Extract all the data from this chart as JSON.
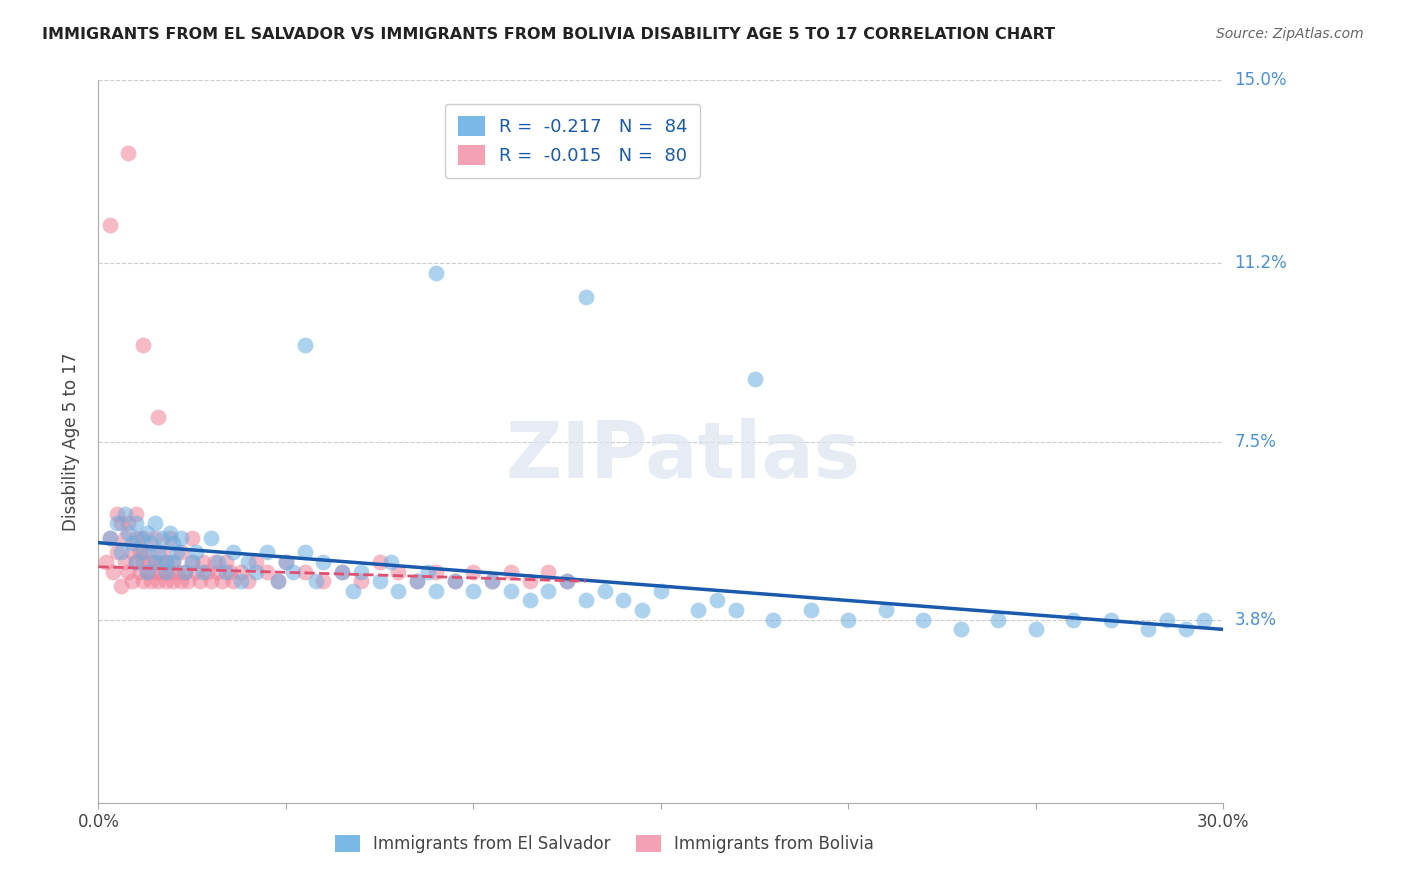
{
  "title": "IMMIGRANTS FROM EL SALVADOR VS IMMIGRANTS FROM BOLIVIA DISABILITY AGE 5 TO 17 CORRELATION CHART",
  "source": "Source: ZipAtlas.com",
  "ylabel": "Disability Age 5 to 17",
  "xlim": [
    0.0,
    0.3
  ],
  "ylim": [
    0.0,
    0.15
  ],
  "xticks": [
    0.0,
    0.05,
    0.1,
    0.15,
    0.2,
    0.25,
    0.3
  ],
  "ytick_positions": [
    0.038,
    0.075,
    0.112,
    0.15
  ],
  "ytick_labels": [
    "3.8%",
    "7.5%",
    "11.2%",
    "15.0%"
  ],
  "legend1_color": "#7ab8e8",
  "legend2_color": "#f4a0b5",
  "legend1_label": "Immigrants from El Salvador",
  "legend2_label": "Immigrants from Bolivia",
  "R1": -0.217,
  "N1": 84,
  "R2": -0.015,
  "N2": 80,
  "blue_color": "#6aaee0",
  "pink_color": "#f08098",
  "trend_blue": "#1a5aad",
  "trend_pink": "#e05070",
  "watermark": "ZIPatlas",
  "background": "#ffffff",
  "grid_color": "#cccccc",
  "el_salvador_x": [
    0.003,
    0.005,
    0.006,
    0.007,
    0.008,
    0.009,
    0.01,
    0.01,
    0.011,
    0.012,
    0.013,
    0.013,
    0.014,
    0.015,
    0.015,
    0.016,
    0.017,
    0.018,
    0.018,
    0.019,
    0.02,
    0.02,
    0.021,
    0.022,
    0.023,
    0.025,
    0.026,
    0.028,
    0.03,
    0.032,
    0.034,
    0.036,
    0.038,
    0.04,
    0.042,
    0.045,
    0.048,
    0.05,
    0.052,
    0.055,
    0.058,
    0.06,
    0.065,
    0.068,
    0.07,
    0.075,
    0.078,
    0.08,
    0.085,
    0.088,
    0.09,
    0.095,
    0.1,
    0.105,
    0.11,
    0.115,
    0.12,
    0.125,
    0.13,
    0.135,
    0.14,
    0.145,
    0.15,
    0.16,
    0.165,
    0.17,
    0.18,
    0.19,
    0.2,
    0.21,
    0.22,
    0.23,
    0.24,
    0.25,
    0.26,
    0.27,
    0.28,
    0.285,
    0.29,
    0.295,
    0.055,
    0.09,
    0.13,
    0.175
  ],
  "el_salvador_y": [
    0.055,
    0.058,
    0.052,
    0.06,
    0.056,
    0.054,
    0.058,
    0.05,
    0.055,
    0.052,
    0.056,
    0.048,
    0.054,
    0.05,
    0.058,
    0.052,
    0.055,
    0.05,
    0.048,
    0.056,
    0.054,
    0.05,
    0.052,
    0.055,
    0.048,
    0.05,
    0.052,
    0.048,
    0.055,
    0.05,
    0.048,
    0.052,
    0.046,
    0.05,
    0.048,
    0.052,
    0.046,
    0.05,
    0.048,
    0.052,
    0.046,
    0.05,
    0.048,
    0.044,
    0.048,
    0.046,
    0.05,
    0.044,
    0.046,
    0.048,
    0.044,
    0.046,
    0.044,
    0.046,
    0.044,
    0.042,
    0.044,
    0.046,
    0.042,
    0.044,
    0.042,
    0.04,
    0.044,
    0.04,
    0.042,
    0.04,
    0.038,
    0.04,
    0.038,
    0.04,
    0.038,
    0.036,
    0.038,
    0.036,
    0.038,
    0.038,
    0.036,
    0.038,
    0.036,
    0.038,
    0.095,
    0.11,
    0.105,
    0.088
  ],
  "bolivia_x": [
    0.002,
    0.003,
    0.004,
    0.005,
    0.005,
    0.006,
    0.006,
    0.007,
    0.007,
    0.008,
    0.008,
    0.009,
    0.009,
    0.01,
    0.01,
    0.01,
    0.011,
    0.011,
    0.012,
    0.012,
    0.012,
    0.013,
    0.013,
    0.014,
    0.014,
    0.015,
    0.015,
    0.016,
    0.016,
    0.017,
    0.017,
    0.018,
    0.018,
    0.019,
    0.019,
    0.02,
    0.02,
    0.021,
    0.022,
    0.022,
    0.023,
    0.024,
    0.025,
    0.025,
    0.026,
    0.027,
    0.028,
    0.029,
    0.03,
    0.031,
    0.032,
    0.033,
    0.034,
    0.035,
    0.036,
    0.038,
    0.04,
    0.042,
    0.045,
    0.048,
    0.05,
    0.055,
    0.06,
    0.065,
    0.07,
    0.075,
    0.08,
    0.085,
    0.09,
    0.095,
    0.1,
    0.105,
    0.11,
    0.115,
    0.12,
    0.125,
    0.003,
    0.008,
    0.012,
    0.016
  ],
  "bolivia_y": [
    0.05,
    0.055,
    0.048,
    0.052,
    0.06,
    0.045,
    0.058,
    0.05,
    0.055,
    0.048,
    0.058,
    0.052,
    0.046,
    0.05,
    0.055,
    0.06,
    0.048,
    0.052,
    0.046,
    0.05,
    0.055,
    0.048,
    0.052,
    0.046,
    0.05,
    0.048,
    0.055,
    0.046,
    0.05,
    0.048,
    0.052,
    0.046,
    0.05,
    0.048,
    0.055,
    0.046,
    0.05,
    0.048,
    0.046,
    0.052,
    0.048,
    0.046,
    0.05,
    0.055,
    0.048,
    0.046,
    0.05,
    0.048,
    0.046,
    0.05,
    0.048,
    0.046,
    0.05,
    0.048,
    0.046,
    0.048,
    0.046,
    0.05,
    0.048,
    0.046,
    0.05,
    0.048,
    0.046,
    0.048,
    0.046,
    0.05,
    0.048,
    0.046,
    0.048,
    0.046,
    0.048,
    0.046,
    0.048,
    0.046,
    0.048,
    0.046,
    0.12,
    0.135,
    0.095,
    0.08
  ]
}
